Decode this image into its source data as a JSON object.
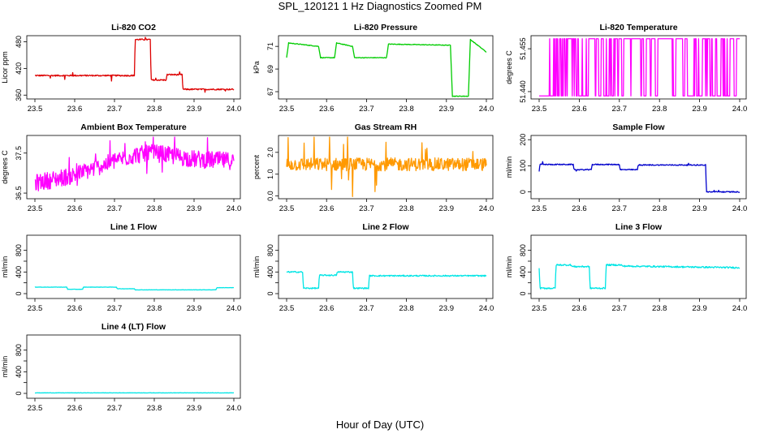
{
  "figure": {
    "title": "SPL_120121  1 Hz Diagnostics Zoomed PM",
    "xlabel": "Hour of Day (UTC)"
  },
  "chart_data": [
    {
      "id": "co2",
      "type": "line",
      "title": "Li-820 CO2",
      "ylabel": "Licor ppm",
      "color": "#dd0000",
      "xlim": [
        23.5,
        24.0
      ],
      "ylim": [
        355,
        490
      ],
      "yticks": [
        360,
        420,
        480
      ],
      "ytick_labels": [
        "360",
        "420",
        "480"
      ],
      "noise": 1.5,
      "spikes": 0.02,
      "spike_amp": 8,
      "x": [
        23.5,
        23.75,
        23.752,
        23.79,
        23.792,
        23.83,
        23.832,
        23.87,
        23.872,
        23.96,
        23.962,
        24.0
      ],
      "y": [
        404,
        404,
        485,
        485,
        394,
        394,
        406,
        406,
        373,
        373,
        373,
        373
      ]
    },
    {
      "id": "pressure",
      "type": "line",
      "title": "Li-820 Pressure",
      "ylabel": "kPa",
      "color": "#00cc00",
      "xlim": [
        23.5,
        24.0
      ],
      "ylim": [
        66.5,
        71.8
      ],
      "yticks": [
        67,
        69,
        71
      ],
      "ytick_labels": [
        "67",
        "69",
        "71"
      ],
      "noise": 0.03,
      "spikes": 0,
      "spike_amp": 0,
      "x": [
        23.5,
        23.505,
        23.58,
        23.585,
        23.62,
        23.625,
        23.665,
        23.67,
        23.75,
        23.755,
        23.91,
        23.915,
        23.955,
        23.96,
        24.0
      ],
      "y": [
        70.0,
        71.3,
        71.0,
        70.0,
        70.0,
        71.3,
        71.0,
        70.0,
        70.0,
        71.2,
        71.1,
        66.6,
        66.6,
        71.6,
        70.5
      ]
    },
    {
      "id": "licor_temp",
      "type": "line",
      "title": "Li-820 Temperature",
      "ylabel": "degrees C",
      "color": "#ff00ff",
      "xlim": [
        23.5,
        24.0
      ],
      "ylim": [
        51.438,
        51.459
      ],
      "yticks": [
        51.44,
        51.455
      ],
      "ytick_labels": [
        "51.440",
        "51.455"
      ],
      "noise": 0,
      "spikes": 0,
      "spike_amp": 0,
      "pattern": "toggle",
      "x": [
        23.5,
        24.0
      ],
      "y": [
        51.438,
        51.459
      ]
    },
    {
      "id": "box_temp",
      "type": "line",
      "title": "Ambient Box Temperature",
      "ylabel": "degrees C",
      "color": "#ff00ff",
      "xlim": [
        23.5,
        24.0
      ],
      "ylim": [
        36.4,
        37.9
      ],
      "yticks": [
        36.5,
        37.5
      ],
      "ytick_labels": [
        "36.5",
        "37.5"
      ],
      "noise": 0.22,
      "spikes": 0.06,
      "spike_amp": 0.25,
      "x": [
        23.5,
        23.6,
        23.7,
        23.75,
        23.8,
        23.9,
        24.0
      ],
      "y": [
        36.75,
        36.95,
        37.3,
        37.45,
        37.5,
        37.35,
        37.3
      ]
    },
    {
      "id": "rh",
      "type": "line",
      "title": "Gas Stream RH",
      "ylabel": "percent",
      "color": "#ff9900",
      "xlim": [
        23.5,
        24.0
      ],
      "ylim": [
        -0.05,
        2.7
      ],
      "yticks": [
        0.0,
        1.0,
        2.0
      ],
      "ytick_labels": [
        "0.0",
        "1.0",
        "2.0"
      ],
      "noise": 0.3,
      "spikes": 0.04,
      "spike_amp": 0.9,
      "x": [
        23.5,
        24.0
      ],
      "y": [
        1.45,
        1.45
      ]
    },
    {
      "id": "sample_flow",
      "type": "line",
      "title": "Sample Flow",
      "ylabel": "ml/min",
      "color": "#0000cc",
      "xlim": [
        23.5,
        24.0
      ],
      "ylim": [
        -20,
        210
      ],
      "yticks": [
        0,
        100,
        200
      ],
      "ytick_labels": [
        "0",
        "100",
        "200"
      ],
      "noise": 2,
      "spikes": 0.01,
      "spike_amp": 10,
      "x": [
        23.5,
        23.502,
        23.585,
        23.587,
        23.63,
        23.632,
        23.7,
        23.702,
        23.745,
        23.747,
        23.915,
        23.917,
        24.0
      ],
      "y": [
        80,
        105,
        105,
        85,
        85,
        105,
        105,
        85,
        85,
        103,
        103,
        0,
        0
      ]
    },
    {
      "id": "line1",
      "type": "line",
      "title": "Line 1 Flow",
      "ylabel": "ml/min",
      "color": "#00e5e5",
      "xlim": [
        23.5,
        24.0
      ],
      "ylim": [
        -60,
        1050
      ],
      "yticks": [
        0,
        200,
        400,
        600,
        800
      ],
      "ytick_labels": [
        "0",
        "400",
        "800"
      ],
      "noise": 3,
      "spikes": 0,
      "spike_amp": 0,
      "x": [
        23.5,
        23.58,
        23.582,
        23.62,
        23.622,
        23.705,
        23.707,
        23.75,
        23.752,
        23.955,
        23.957,
        24.0
      ],
      "y": [
        120,
        120,
        80,
        80,
        120,
        120,
        90,
        90,
        70,
        70,
        110,
        110
      ]
    },
    {
      "id": "line2",
      "type": "line",
      "title": "Line 2 Flow",
      "ylabel": "ml/min",
      "color": "#00e5e5",
      "xlim": [
        23.5,
        24.0
      ],
      "ylim": [
        -60,
        1050
      ],
      "yticks": [
        0,
        200,
        400,
        600,
        800
      ],
      "ytick_labels": [
        "0",
        "400",
        "800"
      ],
      "noise": 12,
      "spikes": 0,
      "spike_amp": 0,
      "x": [
        23.5,
        23.54,
        23.542,
        23.58,
        23.582,
        23.625,
        23.627,
        23.665,
        23.667,
        23.705,
        23.707,
        24.0
      ],
      "y": [
        400,
        400,
        100,
        100,
        340,
        340,
        400,
        400,
        100,
        100,
        330,
        330
      ]
    },
    {
      "id": "line3",
      "type": "line",
      "title": "Line 3 Flow",
      "ylabel": "ml/min",
      "color": "#00e5e5",
      "xlim": [
        23.5,
        24.0
      ],
      "ylim": [
        -60,
        1050
      ],
      "yticks": [
        0,
        200,
        400,
        600,
        800
      ],
      "ytick_labels": [
        "0",
        "400",
        "800"
      ],
      "noise": 14,
      "spikes": 0,
      "spike_amp": 0,
      "x": [
        23.5,
        23.502,
        23.54,
        23.542,
        23.58,
        23.582,
        23.625,
        23.627,
        23.665,
        23.667,
        23.705,
        23.707,
        24.0
      ],
      "y": [
        480,
        100,
        100,
        530,
        530,
        500,
        500,
        100,
        100,
        530,
        530,
        510,
        480
      ]
    },
    {
      "id": "line4",
      "type": "line",
      "title": "Line 4 (LT) Flow",
      "ylabel": "ml/min",
      "color": "#00e5e5",
      "xlim": [
        23.5,
        24.0
      ],
      "ylim": [
        -60,
        1050
      ],
      "yticks": [
        0,
        200,
        400,
        600,
        800
      ],
      "ytick_labels": [
        "0",
        "400",
        "800"
      ],
      "noise": 3,
      "spikes": 0,
      "spike_amp": 0,
      "x": [
        23.5,
        24.0
      ],
      "y": [
        10,
        10
      ]
    }
  ],
  "x_ticks": [
    23.5,
    23.6,
    23.7,
    23.8,
    23.9,
    24.0
  ],
  "x_tick_labels": [
    "23.5",
    "23.6",
    "23.7",
    "23.8",
    "23.9",
    "24.0"
  ]
}
